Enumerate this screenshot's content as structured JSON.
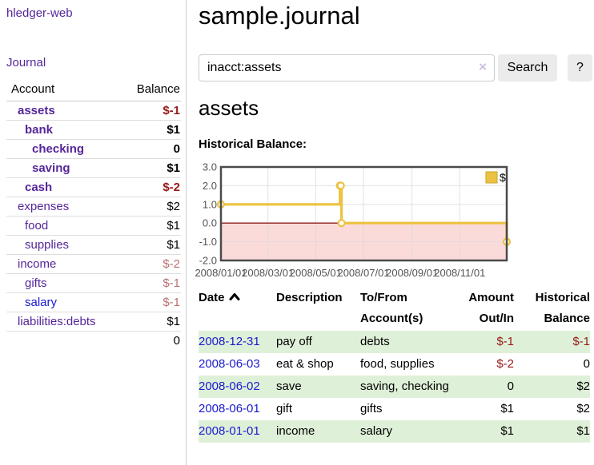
{
  "app": {
    "brand": "hledger-web"
  },
  "colors": {
    "accent_purple": "#55269a",
    "link_blue": "#1a1ad2",
    "neg_strong": "#961a1a",
    "neg_soft": "#b97070",
    "table_row_green": "#dff0d8",
    "axis_text": "#545454",
    "chart_border": "#4a4a4a",
    "grid_line": "#dcdcdc"
  },
  "sidebar": {
    "nav_journal": "Journal",
    "header": {
      "account": "Account",
      "balance": "Balance"
    },
    "rows": [
      {
        "account": "assets",
        "balance": "$-1",
        "depth": 0,
        "bold": true,
        "neg": "strong"
      },
      {
        "account": "bank",
        "balance": "$1",
        "depth": 1,
        "bold": true
      },
      {
        "account": "checking",
        "balance": "0",
        "depth": 2,
        "bold": true
      },
      {
        "account": "saving",
        "balance": "$1",
        "depth": 2,
        "bold": true
      },
      {
        "account": "cash",
        "balance": "$-2",
        "depth": 1,
        "bold": true,
        "neg": "strong"
      },
      {
        "account": "expenses",
        "balance": "$2",
        "depth": 0
      },
      {
        "account": "food",
        "balance": "$1",
        "depth": 1
      },
      {
        "account": "supplies",
        "balance": "$1",
        "depth": 1
      },
      {
        "account": "income",
        "balance": "$-2",
        "depth": 0,
        "neg": "soft"
      },
      {
        "account": "gifts",
        "balance": "$-1",
        "depth": 1,
        "neg": "soft"
      },
      {
        "account": "salary",
        "balance": "$-1",
        "depth": 1,
        "neg": "soft",
        "link": "blue"
      },
      {
        "account": "liabilities:debts",
        "balance": "$1",
        "depth": 0
      }
    ],
    "total": "0"
  },
  "header": {
    "title": "sample.journal"
  },
  "search": {
    "value": "inacct:assets",
    "clear_label": "×",
    "button_label": "Search",
    "help_label": "?"
  },
  "main": {
    "account_title": "assets",
    "chart_label": "Historical Balance:"
  },
  "chart_data": {
    "type": "line",
    "step": true,
    "title": "Historical Balance",
    "series": [
      {
        "name": "$",
        "color": "#edc240",
        "points": [
          [
            "2008/01/01",
            1
          ],
          [
            "2008/06/01",
            2
          ],
          [
            "2008/06/02",
            2
          ],
          [
            "2008/06/03",
            0
          ],
          [
            "2008/12/31",
            -1
          ]
        ]
      }
    ],
    "ylim": [
      -2,
      3
    ],
    "yticks": [
      "3.0",
      "2.0",
      "1.0",
      "0.0",
      "-1.0",
      "-2.0"
    ],
    "xticks": [
      "2008/01/01",
      "2008/03/01",
      "2008/05/01",
      "2008/07/01",
      "2008/09/01",
      "2008/11/01"
    ],
    "grid": true,
    "legend_position": "top-right",
    "negative_region_fill": "#fbdada",
    "zero_line_color": "#8f1d1d"
  },
  "register": {
    "columns": [
      {
        "label": "Date",
        "align": "left",
        "sorted": "asc"
      },
      {
        "label": "Description",
        "align": "left"
      },
      {
        "label": "To/From Account(s)",
        "align": "left"
      },
      {
        "label": "Amount Out/In",
        "align": "right"
      },
      {
        "label": "Historical Balance",
        "align": "right"
      }
    ],
    "rows": [
      {
        "date": "2008-12-31",
        "description": "pay off",
        "accounts": "debts",
        "amount": "$-1",
        "amount_negative": true,
        "balance": "$-1",
        "balance_negative": true
      },
      {
        "date": "2008-06-03",
        "description": "eat & shop",
        "accounts": "food, supplies",
        "amount": "$-2",
        "amount_negative": true,
        "balance": "0",
        "balance_negative": false
      },
      {
        "date": "2008-06-02",
        "description": "save",
        "accounts": "saving, checking",
        "amount": "0",
        "amount_negative": false,
        "balance": "$2",
        "balance_negative": false
      },
      {
        "date": "2008-06-01",
        "description": "gift",
        "accounts": "gifts",
        "amount": "$1",
        "amount_negative": false,
        "balance": "$2",
        "balance_negative": false
      },
      {
        "date": "2008-01-01",
        "description": "income",
        "accounts": "salary",
        "amount": "$1",
        "amount_negative": false,
        "balance": "$1",
        "balance_negative": false
      }
    ]
  }
}
